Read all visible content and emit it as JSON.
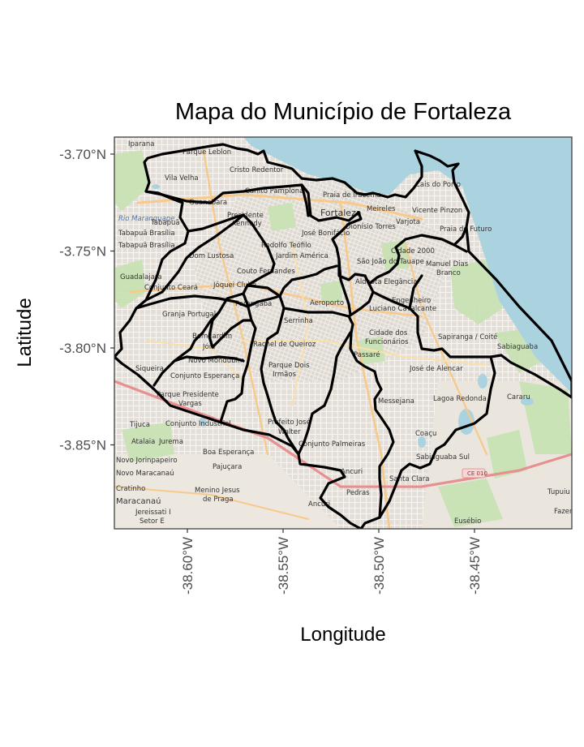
{
  "title": "Mapa do Município de Fortaleza",
  "x_axis": {
    "label": "Longitude",
    "ticks": [
      {
        "value": -38.6,
        "label": "-38.60°W"
      },
      {
        "value": -38.55,
        "label": "-38.55°W"
      },
      {
        "value": -38.5,
        "label": "-38.50°W"
      },
      {
        "value": -38.45,
        "label": "-38.45°W"
      }
    ]
  },
  "y_axis": {
    "label": "Latitude",
    "ticks": [
      {
        "value": -3.7,
        "label": "-3.70°N"
      },
      {
        "value": -3.75,
        "label": "-3.75°N"
      },
      {
        "value": -3.8,
        "label": "-3.80°N"
      },
      {
        "value": -3.85,
        "label": "-3.85°N"
      }
    ]
  },
  "basemap": {
    "colors": {
      "sea": "#aad3df",
      "land": "#efeae2",
      "park": "#c8e2b4",
      "urban": "#d9d5cf",
      "road": "#f7c98a",
      "boundary": "#000000"
    },
    "labels": [
      "Iparana",
      "Parque Leblon",
      "Cristo Redentor",
      "Vila Velha",
      "Carlito Pamplona",
      "Praia de Iracema",
      "Guanabara",
      "Presidente Kennedy",
      "Fortaleza",
      "Meireles",
      "Varjota",
      "Vicente Pinzon",
      "Cais do Porto",
      "Tabapuã",
      "Tabapuã Brasília",
      "Rodolfo Teófilo",
      "José Bonifácio",
      "Dionísio Torres",
      "Praia do Futuro",
      "Cidade 2000",
      "Manuel Dias Branco",
      "Dom Lustosa",
      "Couto Fernandes",
      "Jardim América",
      "São João do Tauape",
      "Guadalajara",
      "Conjunto Ceará",
      "Jóquei Clube",
      "Aldeota Elegância",
      "Engenheiro Luciano Cavalcante",
      "Granja Portugal",
      "Parangaba",
      "Aeroporto",
      "Serrinha",
      "Cidade dos Funcionários",
      "Sapiranga / Coité",
      "Sabiaguaba",
      "Bom Jardim",
      "Jóia",
      "Novo Mondubim",
      "Passaré",
      "Parque Dois Irmãos",
      "José de Alencar",
      "Conjunto Esperança",
      "Parque Presidente Vargas",
      "Messejana",
      "Lagoa Redonda",
      "Cararu",
      "Tijuca",
      "Conjunto Industrial",
      "Prefeito José Walter",
      "Coaçu",
      "Jurema",
      "Novo Jorinpapeiro",
      "Boa Esperança",
      "Conjunto Palmeiras",
      "Sabiaguaba Sul",
      "Novo Maracanaú",
      "Pajuçara",
      "Ancuri",
      "Santa Clara",
      "Cratinho",
      "Maracanaú",
      "Menino Jesus de Praga",
      "Pedras",
      "Jereissati I",
      "Setor E",
      "Eusébio",
      "Tupuiu",
      "Fazenda",
      "Atalaia",
      "CE 010"
    ]
  }
}
